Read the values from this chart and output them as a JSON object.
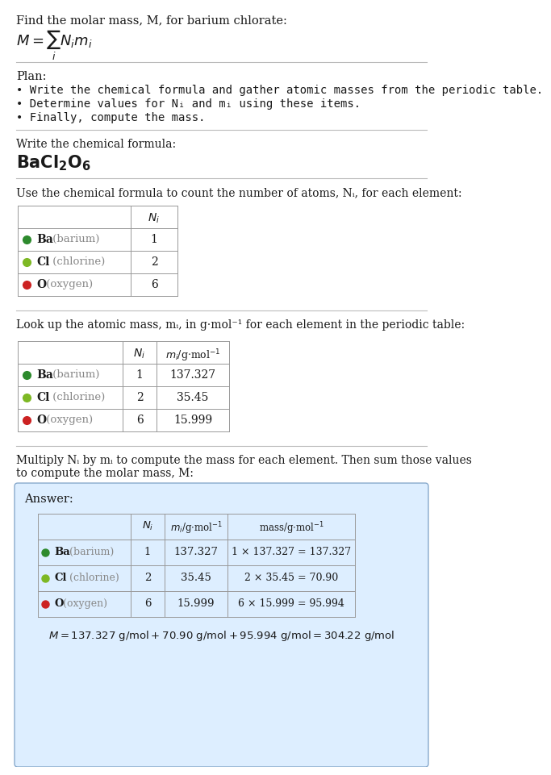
{
  "title_text": "Find the molar mass, M, for barium chlorate:",
  "bg_color": "#ffffff",
  "text_color": "#1a1a1a",
  "gray_text": "#888888",
  "section_line_color": "#bbbbbb",
  "plan_header": "Plan:",
  "plan_bullets": [
    "• Write the chemical formula and gather atomic masses from the periodic table.",
    "• Determine values for Nᵢ and mᵢ using these items.",
    "• Finally, compute the mass."
  ],
  "formula_section_header": "Write the chemical formula:",
  "count_section_header": "Use the chemical formula to count the number of atoms, Nᵢ, for each element:",
  "lookup_section_header": "Look up the atomic mass, mᵢ, in g·mol⁻¹ for each element in the periodic table:",
  "multiply_section_header": "Multiply Nᵢ by mᵢ to compute the mass for each element. Then sum those values\nto compute the molar mass, M:",
  "answer_header": "Answer:",
  "element_symbols": [
    "Ba",
    "Cl",
    "O"
  ],
  "element_names": [
    "barium",
    "chlorine",
    "oxygen"
  ],
  "element_colors": [
    "#2d8a2d",
    "#7db824",
    "#cc2222"
  ],
  "N_i": [
    1,
    2,
    6
  ],
  "m_i": [
    "137.327",
    "35.45",
    "15.999"
  ],
  "mass_expr": [
    "1 × 137.327 = 137.327",
    "2 × 35.45 = 70.90",
    "6 × 15.999 = 95.994"
  ],
  "final_eq": "M = 137.327 g/mol + 70.90 g/mol + 95.994 g/mol = 304.22 g/mol",
  "answer_bg": "#ddeeff",
  "answer_border": "#88aacc"
}
